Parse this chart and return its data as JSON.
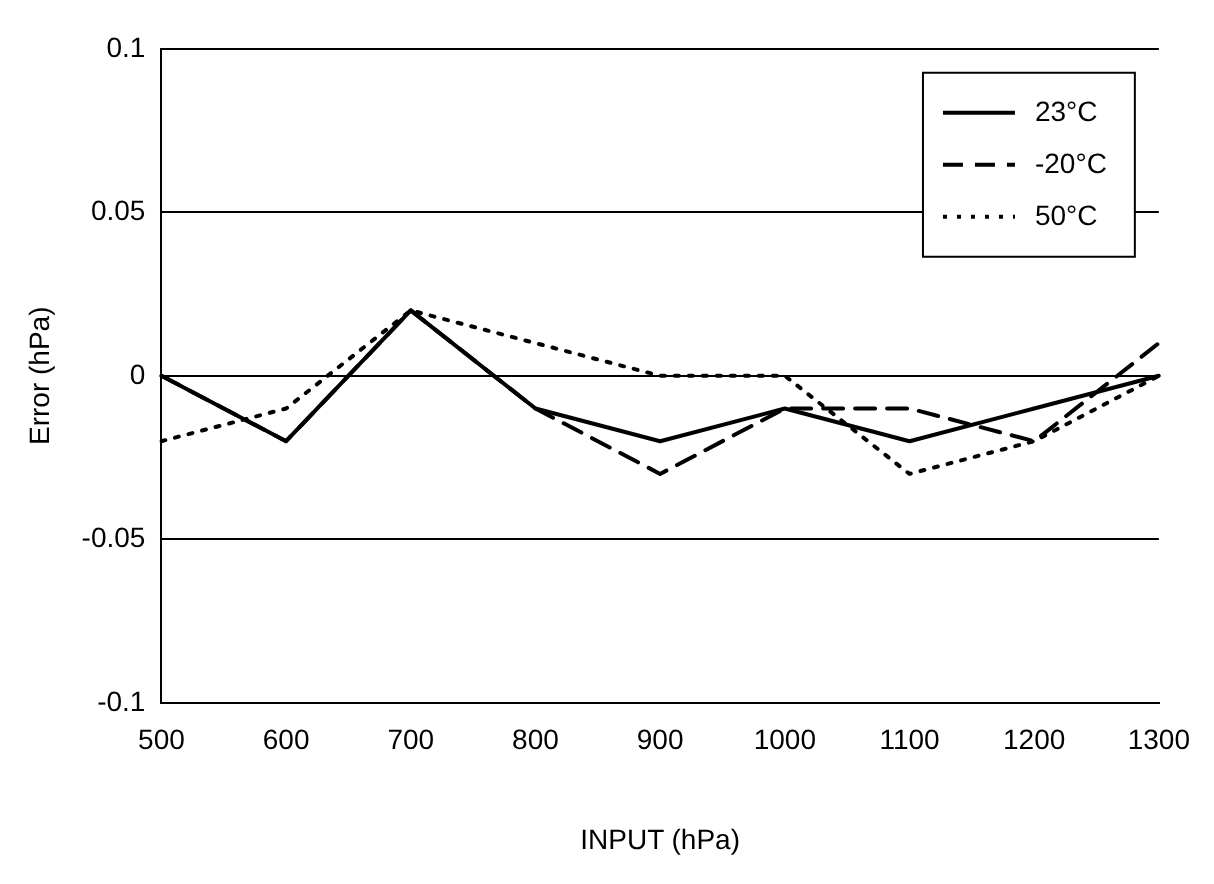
{
  "chart_data": {
    "type": "line",
    "xlabel": "INPUT (hPa)",
    "ylabel": "Error (hPa)",
    "categories": [
      "500",
      "600",
      "700",
      "800",
      "900",
      "1000",
      "1100",
      "1200",
      "1300"
    ],
    "series": [
      {
        "name": "23°C",
        "color": "#000000",
        "line_style": "solid",
        "values": [
          0,
          -0.02,
          0.02,
          -0.01,
          -0.02,
          -0.01,
          -0.02,
          -0.01,
          0
        ]
      },
      {
        "name": "-20°C",
        "color": "#000000",
        "line_style": "dashed",
        "values": [
          0,
          -0.02,
          0.02,
          -0.01,
          -0.03,
          -0.01,
          -0.01,
          -0.02,
          0.01
        ]
      },
      {
        "name": "50°C",
        "color": "#000000",
        "line_style": "dotted",
        "values": [
          -0.02,
          -0.01,
          0.02,
          0.01,
          0,
          0,
          -0.03,
          -0.02,
          0
        ]
      }
    ],
    "ylim": [
      -0.1,
      0.1
    ],
    "yticks": [
      -0.1,
      -0.05,
      0,
      0.05,
      0.1
    ],
    "grid": "y",
    "legend": "top right",
    "marker": "none"
  }
}
